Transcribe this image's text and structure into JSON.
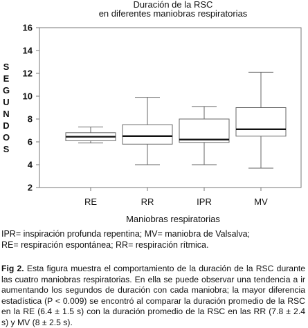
{
  "chart_data": {
    "type": "box",
    "title_lines": [
      "Duración de la RSC",
      "en diferentes maniobras respiratorias"
    ],
    "xlabel": "Maniobras respiratorias",
    "ylabel_letters": [
      "S",
      "E",
      "G",
      "U",
      "N",
      "D",
      "O",
      "S"
    ],
    "ylim": [
      2,
      16
    ],
    "yticks": [
      2,
      4,
      6,
      8,
      10,
      12,
      14,
      16
    ],
    "categories": [
      "RE",
      "RR",
      "IPR",
      "MV"
    ],
    "boxes": [
      {
        "name": "RE",
        "whisker_low": 5.9,
        "q1": 6.1,
        "median": 6.45,
        "q3": 6.8,
        "whisker_high": 7.3
      },
      {
        "name": "RR",
        "whisker_low": 4.0,
        "q1": 5.8,
        "median": 6.5,
        "q3": 7.5,
        "whisker_high": 9.9
      },
      {
        "name": "IPR",
        "whisker_low": 4.0,
        "q1": 5.95,
        "median": 6.2,
        "q3": 8.0,
        "whisker_high": 9.1
      },
      {
        "name": "MV",
        "whisker_low": 3.7,
        "q1": 6.5,
        "median": 7.1,
        "q3": 9.0,
        "whisker_high": 12.1
      }
    ],
    "grid": false
  },
  "notes": {
    "line1": "IPR= inspiración profunda repentina; MV= maniobra de Valsalva;",
    "line2": "RE= respiración espontánea; RR= respiración rítmica."
  },
  "caption": {
    "label": "Fig 2.",
    "text": "Esta figura muestra el comportamiento de la duración de la RSC durante las cuatro maniobras respiratorias. En ella se puede observar una tendencia a ir aumentando los segundos de duración con cada maniobra; la mayor diferencia estadística (P < 0.009) se encontró al comparar la duración promedio de la RSC en la RE (6.4 ± 1.5 s) con la duración promedio de la RSC en las RR (7.8 ± 2.4 s) y MV (8 ± 2.5 s)."
  }
}
